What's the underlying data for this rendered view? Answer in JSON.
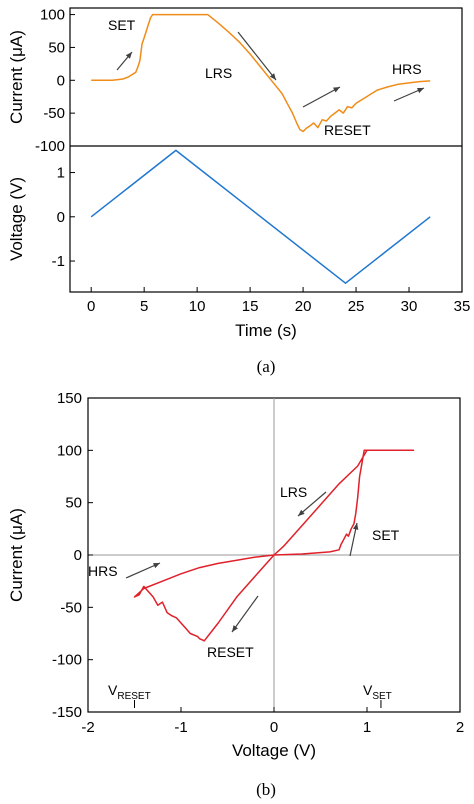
{
  "colors": {
    "current_a": "#f08c1a",
    "voltage_a": "#1f77d0",
    "iv_b": "#e0202a",
    "zero_line": "#9a9a9a",
    "arrow": "#404040"
  },
  "chart_data": [
    {
      "panel": "a-top",
      "type": "line",
      "ylabel": "Current (μA)",
      "xlim": [
        -2,
        35
      ],
      "ylim": [
        -100,
        110
      ],
      "yticks": [
        "100",
        "50",
        "0",
        "-50",
        "-100"
      ],
      "series": [
        {
          "x": [
            0,
            1,
            2,
            3,
            3.5,
            3.8,
            4.0,
            4.2,
            4.4,
            4.6,
            4.8,
            5.0,
            5.2,
            5.4,
            5.6,
            5.8,
            6,
            8,
            11,
            12,
            13,
            14,
            15,
            16,
            17,
            18,
            18.5,
            19,
            19.4,
            19.7,
            20,
            20.3,
            20.6,
            21,
            21.4,
            21.8,
            22.2,
            22.6,
            23,
            23.4,
            23.8,
            24.2,
            24.6,
            25,
            26,
            27,
            28,
            29,
            30,
            31,
            32
          ],
          "y": [
            0,
            0,
            0,
            2,
            5,
            8,
            10,
            12,
            20,
            30,
            55,
            65,
            75,
            85,
            95,
            100,
            100,
            100,
            100,
            87,
            73,
            58,
            40,
            20,
            0,
            -20,
            -35,
            -50,
            -65,
            -75,
            -78,
            -73,
            -70,
            -65,
            -72,
            -60,
            -62,
            -55,
            -50,
            -45,
            -50,
            -40,
            -42,
            -35,
            -25,
            -15,
            -10,
            -6,
            -4,
            -2,
            -1
          ]
        }
      ],
      "annotations": [
        "SET",
        "LRS",
        "RESET",
        "HRS"
      ]
    },
    {
      "panel": "a-bottom",
      "type": "line",
      "xlabel": "Time (s)",
      "ylabel": "Voltage (V)",
      "xlim": [
        -2,
        35
      ],
      "ylim": [
        -1.7,
        1.6
      ],
      "xticks": [
        "0",
        "5",
        "10",
        "15",
        "20",
        "25",
        "30",
        "35"
      ],
      "yticks": [
        "1",
        "0",
        "-1"
      ],
      "series": [
        {
          "x": [
            0,
            8,
            24,
            32
          ],
          "y": [
            0,
            1.5,
            -1.5,
            0
          ]
        }
      ]
    },
    {
      "panel": "b",
      "type": "line",
      "xlabel": "Voltage (V)",
      "ylabel": "Current (μA)",
      "xlim": [
        -2,
        2
      ],
      "ylim": [
        -150,
        150
      ],
      "xticks": [
        "-2",
        "-1",
        "0",
        "1",
        "2"
      ],
      "yticks": [
        "150",
        "100",
        "50",
        "0",
        "-50",
        "-100",
        "-150"
      ],
      "series": [
        {
          "x": [
            0,
            0.3,
            0.6,
            0.7,
            0.72,
            0.75,
            0.78,
            0.8,
            0.83,
            0.86,
            0.88,
            0.9,
            0.92,
            0.95,
            0.97,
            1.0,
            1.5,
            1.5,
            1.0,
            0.9,
            0.7,
            0.5,
            0.3,
            0.1,
            0,
            -0.2,
            -0.4,
            -0.6,
            -0.75,
            -0.8,
            -0.82,
            -0.9,
            -0.95,
            -1.0,
            -1.05,
            -1.1,
            -1.15,
            -1.2,
            -1.25,
            -1.3,
            -1.35,
            -1.4,
            -1.45,
            -1.5,
            -1.5,
            -1.4,
            -1.2,
            -1.0,
            -0.8,
            -0.6,
            -0.4,
            -0.2,
            0
          ],
          "y": [
            0,
            1,
            3,
            5,
            10,
            15,
            20,
            18,
            25,
            30,
            40,
            55,
            75,
            90,
            100,
            100,
            100,
            100,
            100,
            85,
            68,
            48,
            28,
            8,
            0,
            -20,
            -40,
            -65,
            -82,
            -80,
            -78,
            -75,
            -70,
            -65,
            -60,
            -58,
            -55,
            -45,
            -48,
            -40,
            -35,
            -30,
            -38,
            -40,
            -40,
            -32,
            -25,
            -18,
            -12,
            -8,
            -5,
            -2,
            0
          ]
        }
      ],
      "annotations": [
        "HRS",
        "LRS",
        "SET",
        "RESET"
      ],
      "v_reset_label": {
        "main": "V",
        "sub": "RESET"
      },
      "v_set_label": {
        "main": "V",
        "sub": "SET"
      }
    }
  ],
  "captions": {
    "a": "(a)",
    "b": "(b)"
  }
}
